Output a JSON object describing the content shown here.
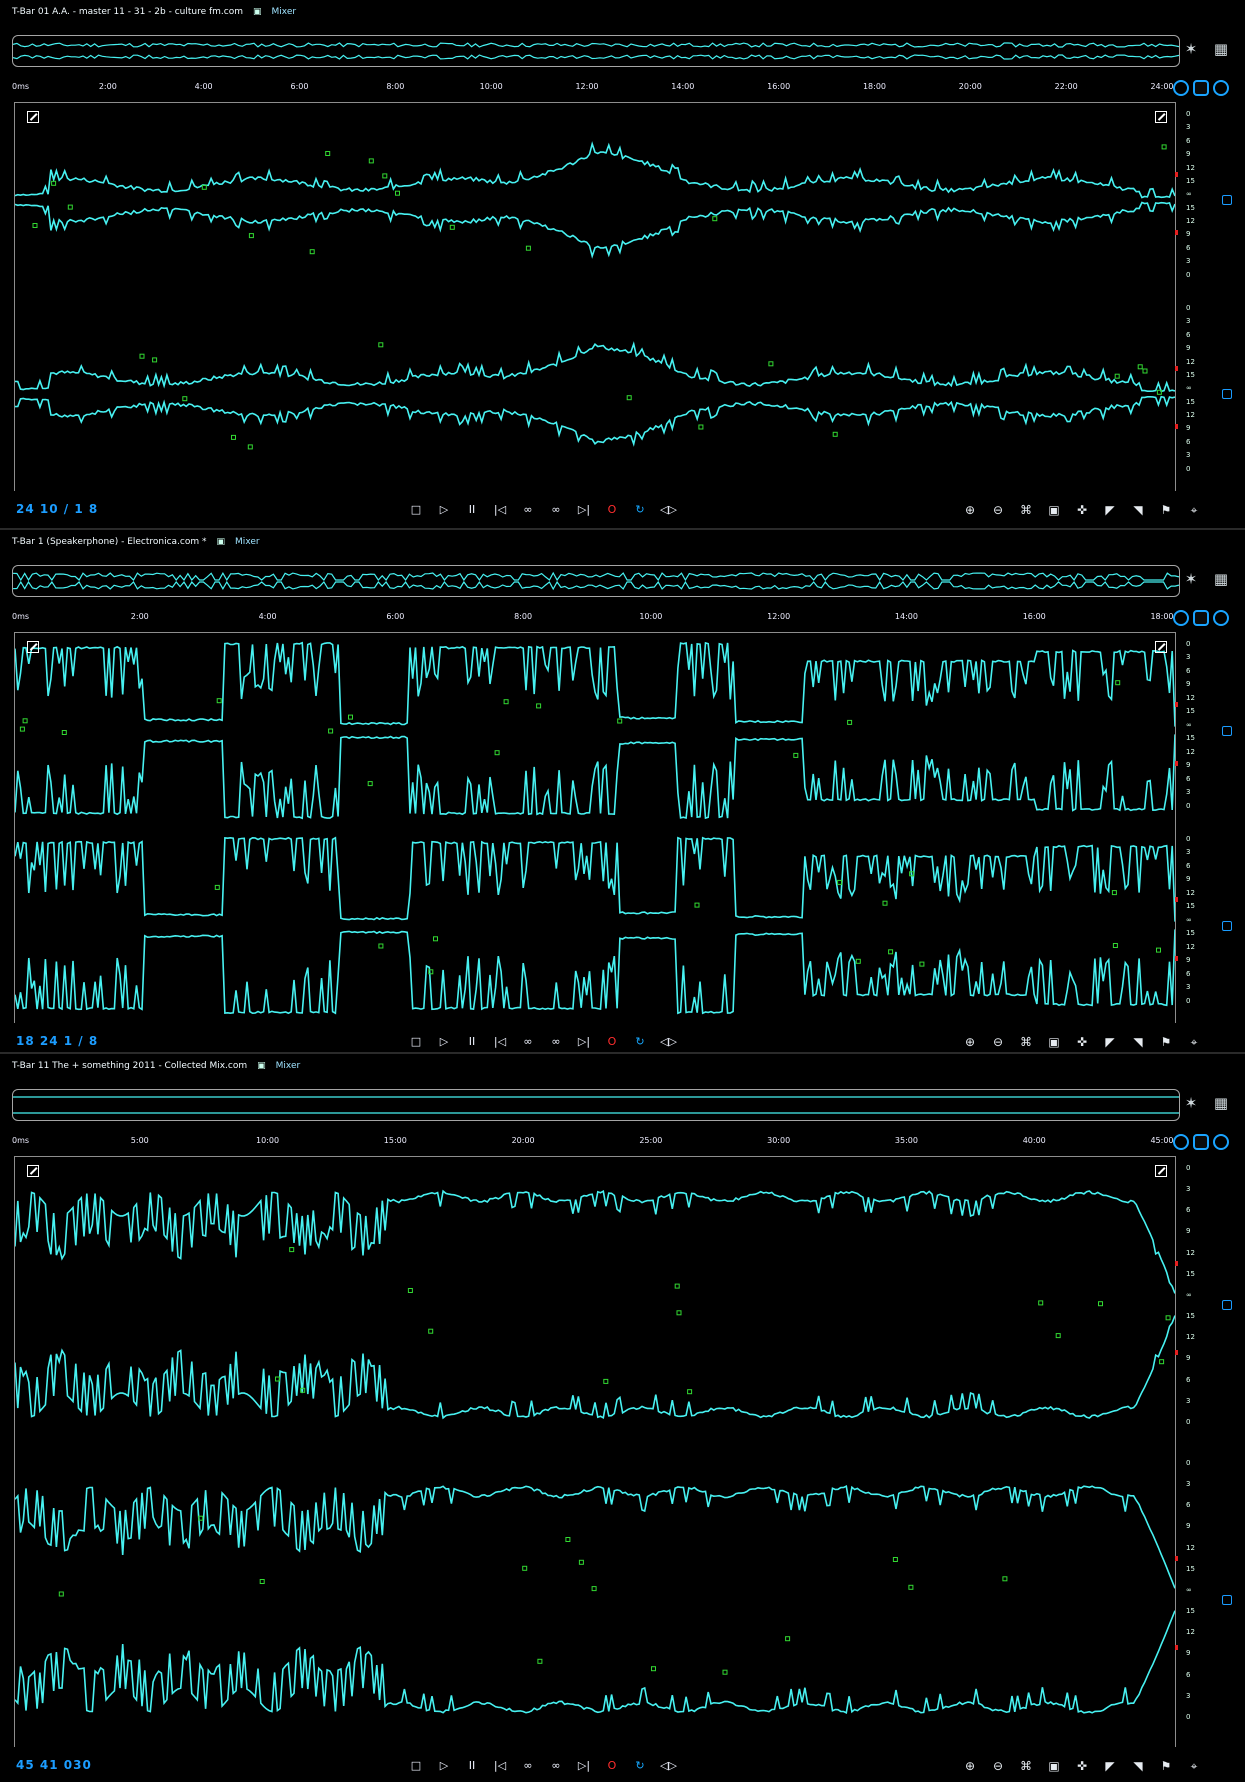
{
  "editors": [
    {
      "title": "T-Bar 01 A.A. - master 11 - 31 - 2b - culture fm.com",
      "modified": "▣",
      "mixer_label": "Mixer",
      "ruler": [
        "0ms",
        "2:00",
        "4:00",
        "6:00",
        "8:00",
        "10:00",
        "12:00",
        "14:00",
        "16:00",
        "18:00",
        "20:00",
        "22:00",
        "24:00"
      ],
      "timecode": "24 10 / 1 8",
      "top_channel_badge": "2",
      "bottom_channel_badge": "2",
      "profile": "mixed"
    },
    {
      "title": "T-Bar 1 (Speakerphone) - Electronica.com *",
      "modified": "▣",
      "mixer_label": "Mixer",
      "ruler": [
        "0ms",
        "2:00",
        "4:00",
        "6:00",
        "8:00",
        "10:00",
        "12:00",
        "14:00",
        "16:00",
        "18:00"
      ],
      "timecode": "18 24 1 / 8",
      "top_channel_badge": "2",
      "bottom_channel_badge": "2",
      "profile": "blocky"
    },
    {
      "title": "T-Bar 11 The + something 2011 - Collected Mix.com",
      "modified": "▣",
      "mixer_label": "Mixer",
      "ruler": [
        "0ms",
        "5:00",
        "10:00",
        "15:00",
        "20:00",
        "25:00",
        "30:00",
        "35:00",
        "40:00",
        "45:00"
      ],
      "timecode": "45 41 030",
      "top_channel_badge": "2",
      "bottom_channel_badge": "2",
      "profile": "burst"
    }
  ],
  "colors": {
    "waveform": "#47f1f1",
    "waveform_fill": "#a9fbff",
    "accent": "#1c9dff",
    "record": "#ff2d2d",
    "marker_green": "#32d932",
    "background": "#000000"
  },
  "scale_labels": [
    "0",
    "3",
    "6",
    "9",
    "12",
    "15",
    "∞",
    "15",
    "12",
    "9",
    "6",
    "3",
    "0"
  ],
  "transport": {
    "stop": "□",
    "play": "▷",
    "pause": "II",
    "rewind": "|◁",
    "loop1": "∞",
    "loop2": "∞",
    "forward": "▷|",
    "record": "O",
    "repeat": "↻",
    "mute": "◁▷"
  },
  "tool_icons": [
    "zoom-in-icon",
    "zoom-out-icon",
    "zoom-selection-icon",
    "zoom-fit-icon",
    "pan-icon",
    "fade-in-icon",
    "fade-out-icon",
    "marker-icon",
    "snap-icon"
  ]
}
